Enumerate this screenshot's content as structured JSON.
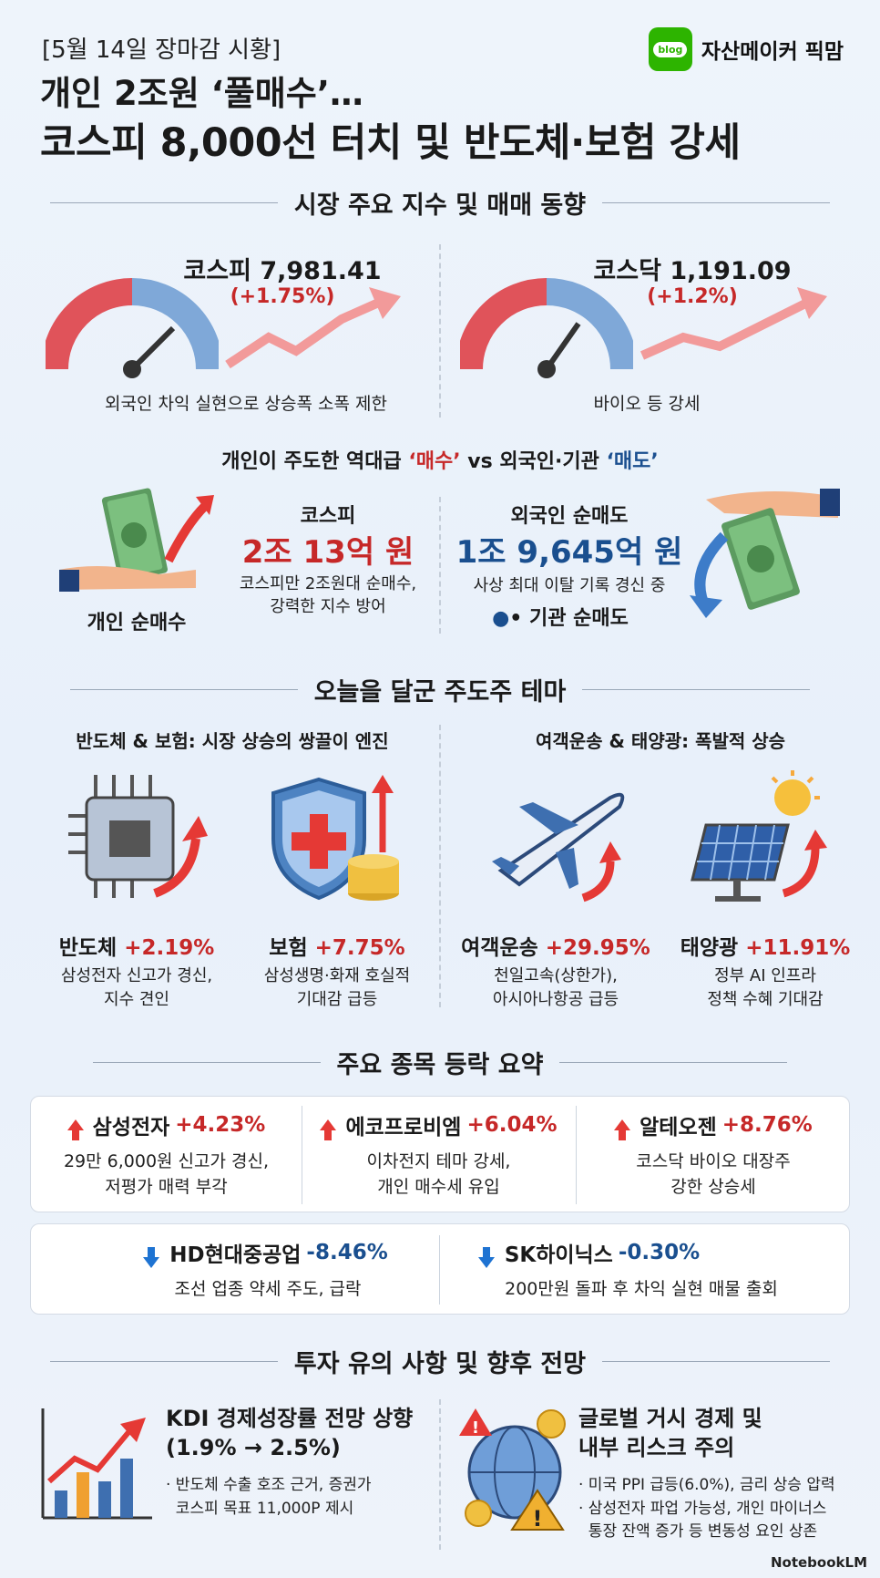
{
  "header": {
    "date_tag": "[5월 14일 장마감 시황]",
    "brand_logo": "blog",
    "brand_name": "자산메이커 픽맘",
    "title_line1": "개인 2조원 ‘풀매수’…",
    "title_line2": "코스피 8,000선 터치 및 반도체·보험 강세"
  },
  "sections": {
    "indices": "시장 주요 지수 및 매매 동향",
    "themes": "오늘을 달군 주도주 테마",
    "stocks": "주요 종목 등락 요약",
    "outlook": "투자 유의 사항 및 향후 전망"
  },
  "indices": {
    "kospi": {
      "title": "코스피 7,981.41",
      "change": "(+1.75%)",
      "note": "외국인 차익 실현으로 상승폭 소폭 제한"
    },
    "kosdaq": {
      "title": "코스닥 1,191.09",
      "change": "(+1.2%)",
      "note": "바이오 등 강세"
    }
  },
  "flows": {
    "headline_pre": "개인이 주도한 역대급 ",
    "headline_buy": "‘매수’",
    "headline_mid": " vs 외국인·기관 ",
    "headline_sell": "‘매도’",
    "individual_label": "개인 순매수",
    "kospi_label": "코스피",
    "kospi_amount": "2조 13억 원",
    "kospi_desc1": "코스피만 2조원대 순매수,",
    "kospi_desc2": "강력한 지수 방어",
    "foreign_label": "외국인 순매도",
    "foreign_amount": "1조 9,645억 원",
    "foreign_desc": "사상 최대 이탈 기록 경신 중",
    "inst_label": "• 기관 순매도"
  },
  "themes": {
    "left_sub": "반도체 & 보험: 시장 상승의 쌍끌이 엔진",
    "right_sub": "여객운송 & 태양광: 폭발적 상승",
    "items": [
      {
        "name": "반도체",
        "change": "+2.19%",
        "desc1": "삼성전자 신고가 경신,",
        "desc2": "지수 견인"
      },
      {
        "name": "보험",
        "change": "+7.75%",
        "desc1": "삼성생명·화재 호실적",
        "desc2": "기대감 급등"
      },
      {
        "name": "여객운송",
        "change": "+29.95%",
        "desc1": "천일고속(상한가),",
        "desc2": "아시아나항공 급등"
      },
      {
        "name": "태양광",
        "change": "+11.91%",
        "desc1": "정부 AI 인프라",
        "desc2": "정책 수혜 기대감"
      }
    ]
  },
  "stocks": {
    "up": [
      {
        "name": "삼성전자",
        "change": "+4.23%",
        "desc1": "29만 6,000원 신고가 경신,",
        "desc2": "저평가 매력 부각"
      },
      {
        "name": "에코프로비엠",
        "change": "+6.04%",
        "desc1": "이차전지 테마 강세,",
        "desc2": "개인 매수세 유입"
      },
      {
        "name": "알테오젠",
        "change": "+8.76%",
        "desc1": "코스닥 바이오 대장주",
        "desc2": "강한 상승세"
      }
    ],
    "down": [
      {
        "name": "HD현대중공업",
        "change": "-8.46%",
        "desc": "조선 업종 약세 주도, 급락"
      },
      {
        "name": "SK하이닉스",
        "change": "-0.30%",
        "desc": "200만원 돌파 후 차익 실현 매물 출회"
      }
    ]
  },
  "outlook": {
    "left_title1": "KDI 경제성장률 전망 상향",
    "left_title2": "(1.9% → 2.5%)",
    "left_desc1": "· 반도체 수출 호조 근거, 증권가",
    "left_desc2": "  코스피 목표 11,000P 제시",
    "right_title1": "글로벌 거시 경제 및",
    "right_title2": "내부 리스크 주의",
    "right_desc1": "· 미국 PPI 급등(6.0%), 금리 상승 압력",
    "right_desc2": "· 삼성전자 파업 가능성, 개인 마이너스",
    "right_desc3": "  통장 잔액 증가 등 변동성 요인 상존"
  },
  "footer": {
    "logo": "NotebookLM"
  },
  "colors": {
    "up": "#c62828",
    "down": "#1a4f8f",
    "brand": "#2db400"
  }
}
